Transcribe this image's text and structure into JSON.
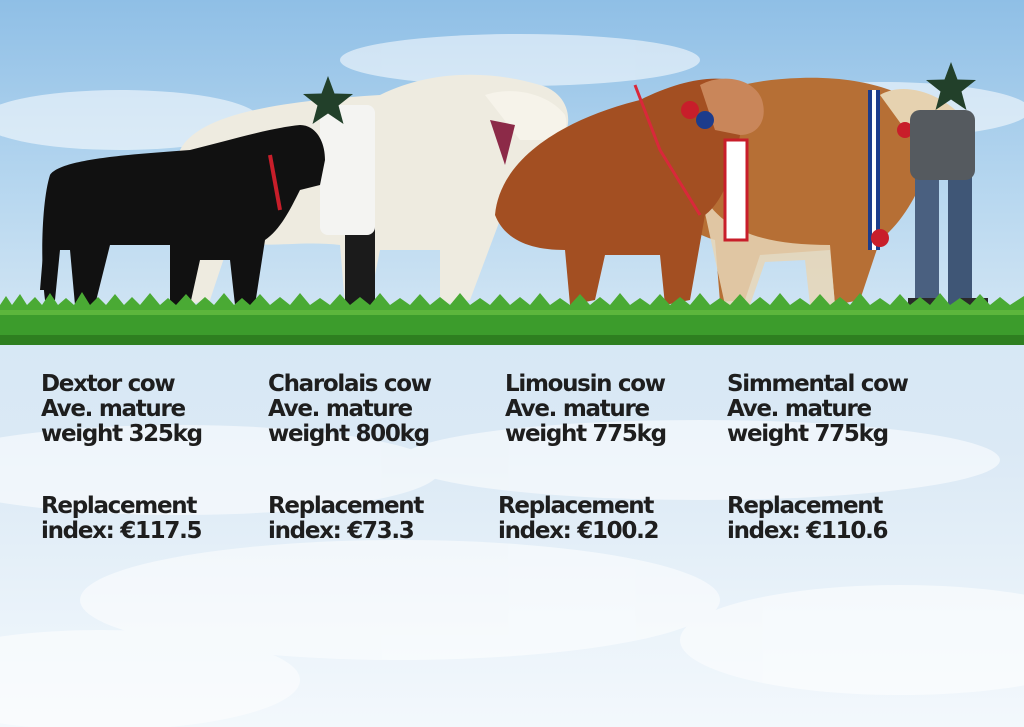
{
  "colors": {
    "text": "#1e1e1e",
    "sky_top": "#8fbfe6",
    "sky_bottom": "#f3f8fc",
    "grass": "#3c9c2c",
    "star": "#22402a"
  },
  "animals": [
    {
      "name": "Dextor cow",
      "line2": "Ave. mature",
      "line3": "weight 325kg",
      "replacement_1": "Replacement",
      "replacement_2": "index: €117.5"
    },
    {
      "name": "Charolais cow",
      "line2": "Ave. mature",
      "line3": "weight 800kg",
      "replacement_1": "Replacement",
      "replacement_2": "index: €73.3"
    },
    {
      "name": "Limousin cow",
      "line2": "Ave. mature",
      "line3": "weight 775kg",
      "replacement_1": "Replacement",
      "replacement_2": "index: €100.2"
    },
    {
      "name": "Simmental cow",
      "line2": "Ave. mature",
      "line3": "weight 775kg",
      "replacement_1": "Replacement",
      "replacement_2": "index: €110.6"
    }
  ],
  "icons": [
    "star-icon",
    "star-icon"
  ]
}
